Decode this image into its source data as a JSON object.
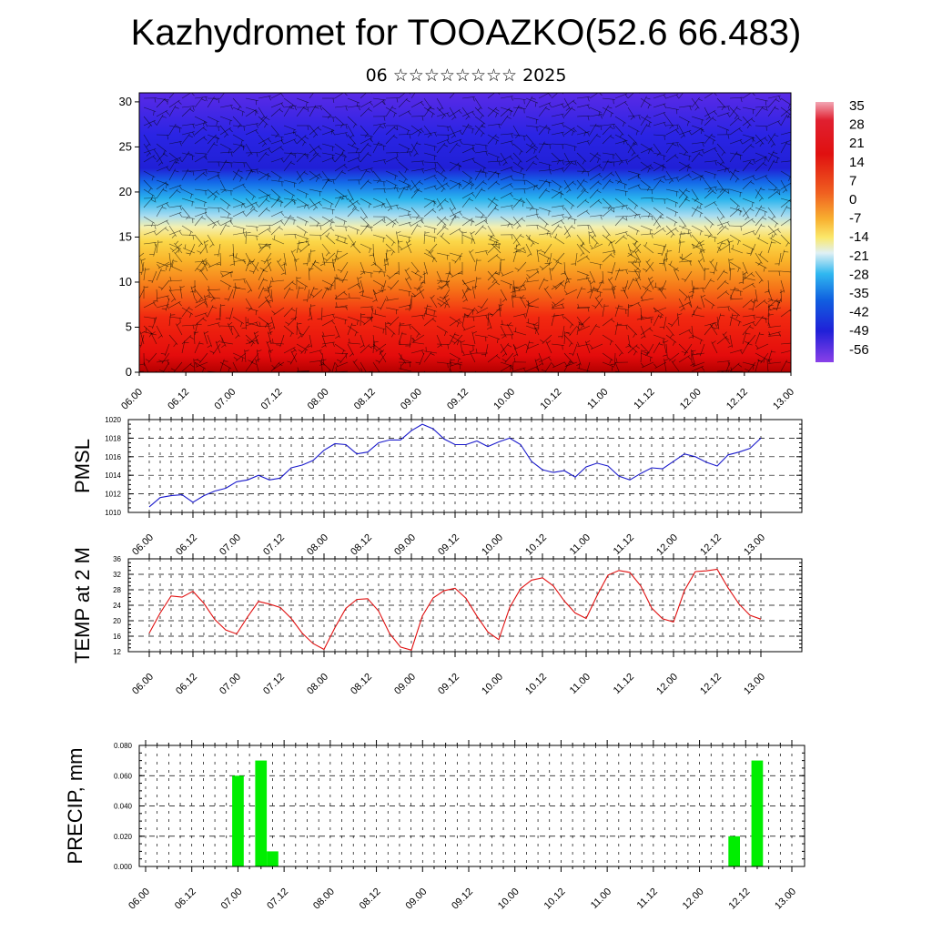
{
  "header": {
    "title": "Kazhydromet for TOOAZKO(52.6 66.483)",
    "subtitle": "06 ☆☆☆☆☆☆☆☆ 2025"
  },
  "colors": {
    "pressure_line": "#1a1acc",
    "temperature_line": "#e01010",
    "precip_bar": "#00ee00",
    "wind_barbs": "#000000"
  },
  "chart_data": [
    {
      "id": "cross-section",
      "type": "heatmap",
      "title": "",
      "xlabel": "",
      "ylabel": "",
      "x_tick_labels": [
        "06.00",
        "06.12",
        "07.00",
        "07.12",
        "08.00",
        "08.12",
        "09.00",
        "09.12",
        "10.00",
        "10.12",
        "11.00",
        "11.12",
        "12.00",
        "12.12",
        "13.00"
      ],
      "y_tick_labels": [
        "0",
        "5",
        "10",
        "15",
        "20",
        "25",
        "30"
      ],
      "ylim": [
        0,
        31
      ],
      "colorbar_labels": [
        "35",
        "28",
        "21",
        "14",
        "7",
        "0",
        "-7",
        "-14",
        "-21",
        "-28",
        "-35",
        "-42",
        "-49",
        "-56"
      ],
      "bands": [
        {
          "y0": 0,
          "y1": 8,
          "value": 28
        },
        {
          "y0": 8,
          "y1": 13,
          "value": 14
        },
        {
          "y0": 13,
          "y1": 16.5,
          "value": -7
        },
        {
          "y0": 16.5,
          "y1": 19,
          "value": -21
        },
        {
          "y0": 19,
          "y1": 21.5,
          "value": -35
        },
        {
          "y0": 21.5,
          "y1": 31,
          "value": -56
        }
      ],
      "overlay": "wind barbs"
    },
    {
      "id": "pmsl",
      "type": "line",
      "ylabel": "PMSL",
      "ylim": [
        1010,
        1020
      ],
      "y_ticks": [
        "1010",
        "1012",
        "1014",
        "1016",
        "1018",
        "1020"
      ],
      "x_tick_labels": [
        "06.00",
        "06.12",
        "07.00",
        "07.12",
        "08.00",
        "08.12",
        "09.00",
        "09.12",
        "10.00",
        "10.12",
        "11.00",
        "11.12",
        "12.00",
        "12.12",
        "13.00"
      ],
      "x_hours": [
        0,
        3,
        6,
        9,
        12,
        15,
        18,
        21,
        24,
        27,
        30,
        33,
        36,
        39,
        42,
        45,
        48,
        51,
        54,
        57,
        60,
        63,
        66,
        69,
        72,
        75,
        78,
        81,
        84,
        87,
        90,
        93,
        96,
        99,
        102,
        105,
        108,
        111,
        114,
        117,
        120,
        123,
        126,
        129,
        132,
        135,
        138,
        141,
        144,
        147,
        150,
        153,
        156,
        159,
        162,
        165,
        168
      ],
      "values": [
        1010.6,
        1011.6,
        1011.8,
        1011.9,
        1011.1,
        1011.8,
        1012.3,
        1012.6,
        1013.3,
        1013.5,
        1014.0,
        1013.5,
        1013.7,
        1014.8,
        1015.1,
        1015.6,
        1016.7,
        1017.4,
        1017.3,
        1016.3,
        1016.5,
        1017.5,
        1017.8,
        1017.8,
        1018.8,
        1019.5,
        1019.0,
        1017.9,
        1017.3,
        1017.3,
        1017.7,
        1017.1,
        1017.6,
        1018.0,
        1017.3,
        1015.5,
        1014.6,
        1014.3,
        1014.5,
        1013.8,
        1014.9,
        1015.3,
        1015.0,
        1013.9,
        1013.5,
        1014.2,
        1014.8,
        1014.7,
        1015.5,
        1016.3,
        1016.0,
        1015.4,
        1015.0,
        1016.2,
        1016.5,
        1016.9,
        1018.0
      ]
    },
    {
      "id": "temp2m",
      "type": "line",
      "ylabel": "TEMP at 2 M",
      "ylim": [
        12,
        36
      ],
      "y_ticks": [
        "12",
        "16",
        "20",
        "24",
        "28",
        "32",
        "36"
      ],
      "x_tick_labels": [
        "06.00",
        "06.12",
        "07.00",
        "07.12",
        "08.00",
        "08.12",
        "09.00",
        "09.12",
        "10.00",
        "10.12",
        "11.00",
        "11.12",
        "12.00",
        "12.12",
        "13.00"
      ],
      "x_hours": [
        0,
        3,
        6,
        9,
        12,
        15,
        18,
        21,
        24,
        27,
        30,
        33,
        36,
        39,
        42,
        45,
        48,
        51,
        54,
        57,
        60,
        63,
        66,
        69,
        72,
        75,
        78,
        81,
        84,
        87,
        90,
        93,
        96,
        99,
        102,
        105,
        108,
        111,
        114,
        117,
        120,
        123,
        126,
        129,
        132,
        135,
        138,
        141,
        144,
        147,
        150,
        153,
        156,
        159,
        162,
        165,
        168
      ],
      "values": [
        16.8,
        22.0,
        26.4,
        26.1,
        27.6,
        24.5,
        20.3,
        17.6,
        16.6,
        21.0,
        25.0,
        24.3,
        23.4,
        20.6,
        16.8,
        14.1,
        12.6,
        18.2,
        23.2,
        25.5,
        25.7,
        22.5,
        16.7,
        13.2,
        12.4,
        21.2,
        25.9,
        27.8,
        28.4,
        25.8,
        21.2,
        17.1,
        15.1,
        23.4,
        28.3,
        30.5,
        31.1,
        29.0,
        25.1,
        22.0,
        20.6,
        26.5,
        31.8,
        33.0,
        32.5,
        29.0,
        23.3,
        20.5,
        19.7,
        27.8,
        32.7,
        32.9,
        33.3,
        28.5,
        24.3,
        21.4,
        20.4
      ]
    },
    {
      "id": "precip",
      "type": "bar",
      "ylabel": "PRECIP, mm",
      "ylim": [
        0,
        0.08
      ],
      "y_ticks": [
        "0.000",
        "0.020",
        "0.040",
        "0.060",
        "0.080"
      ],
      "x_tick_labels": [
        "06.00",
        "06.12",
        "07.00",
        "07.12",
        "08.00",
        "08.12",
        "09.00",
        "09.12",
        "10.00",
        "10.12",
        "11.00",
        "11.12",
        "12.00",
        "12.12",
        "13.00"
      ],
      "bars": [
        {
          "hour": 24,
          "value": 0.06
        },
        {
          "hour": 30,
          "value": 0.07
        },
        {
          "hour": 33,
          "value": 0.01
        },
        {
          "hour": 153,
          "value": 0.02
        },
        {
          "hour": 159,
          "value": 0.07
        }
      ]
    }
  ]
}
